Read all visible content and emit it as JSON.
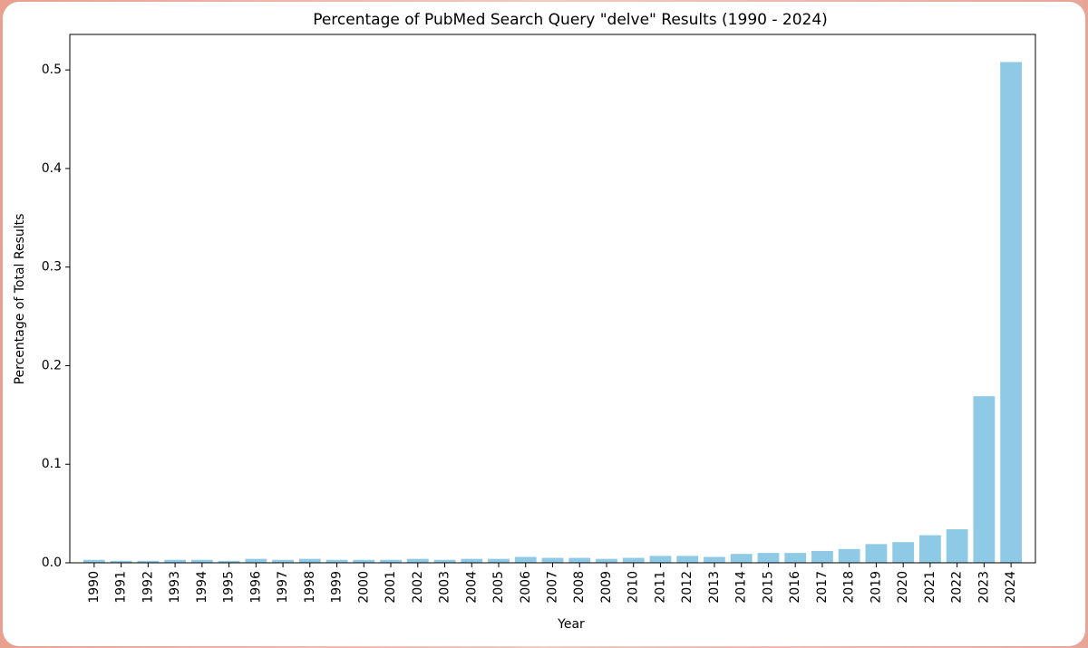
{
  "chart_data": {
    "type": "bar",
    "title": "Percentage of PubMed Search Query \"delve\" Results (1990 - 2024)",
    "x_label": "Year",
    "y_label": "Percentage of Total Results",
    "categories": [
      "1990",
      "1991",
      "1992",
      "1993",
      "1994",
      "1995",
      "1996",
      "1997",
      "1998",
      "1999",
      "2000",
      "2001",
      "2002",
      "2003",
      "2004",
      "2005",
      "2006",
      "2007",
      "2008",
      "2009",
      "2010",
      "2011",
      "2012",
      "2013",
      "2014",
      "2015",
      "2016",
      "2017",
      "2018",
      "2019",
      "2020",
      "2021",
      "2022",
      "2023",
      "2024"
    ],
    "values": [
      0.003,
      0.002,
      0.002,
      0.003,
      0.003,
      0.002,
      0.004,
      0.003,
      0.004,
      0.003,
      0.003,
      0.003,
      0.004,
      0.003,
      0.004,
      0.004,
      0.006,
      0.005,
      0.005,
      0.004,
      0.005,
      0.007,
      0.007,
      0.006,
      0.009,
      0.01,
      0.01,
      0.012,
      0.014,
      0.019,
      0.021,
      0.028,
      0.034,
      0.169,
      0.508
    ],
    "color": "#8ecae6",
    "ylim": [
      0,
      0.536
    ],
    "yticks": [
      {
        "value": 0,
        "label": "0.0"
      },
      0.1,
      0.2,
      0.3,
      0.4,
      0.5
    ],
    "grid": false
  }
}
